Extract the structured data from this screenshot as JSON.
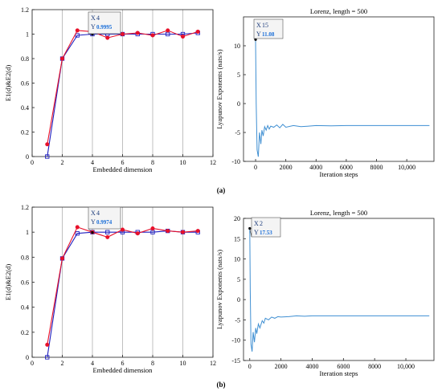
{
  "chart_data": [
    {
      "id": "a-left",
      "type": "line",
      "title": "",
      "xlabel": "Embedded dimension",
      "ylabel": "E1(d)&E2(d)",
      "xlim": [
        0,
        12
      ],
      "ylim": [
        0,
        1.2
      ],
      "xticks": [
        "0",
        "2",
        "4",
        "6",
        "8",
        "10",
        "12"
      ],
      "yticks": [
        "0",
        "0.2",
        "0.4",
        "0.6",
        "0.8",
        "1",
        "1.2"
      ],
      "grid": "x-only",
      "series": [
        {
          "name": "",
          "color": "#1f1fbf",
          "marker": "square",
          "x": [
            1,
            2,
            3,
            4,
            5,
            6,
            7,
            8,
            9,
            10,
            11
          ],
          "y": [
            0,
            0.8,
            0.99,
            1.0,
            1.0,
            1.0,
            1.0,
            1.0,
            1.0,
            1.0,
            1.01
          ]
        },
        {
          "name": "",
          "color": "#e8102a",
          "marker": "circle",
          "x": [
            1,
            2,
            3,
            4,
            5,
            6,
            7,
            8,
            9,
            10,
            11
          ],
          "y": [
            0.1,
            0.8,
            1.03,
            1.02,
            0.97,
            1.0,
            1.01,
            0.99,
            1.03,
            0.98,
            1.02
          ]
        }
      ],
      "datatip": {
        "xlabel": "X",
        "x": "4",
        "ylabel": "Y",
        "y": "0.9995"
      }
    },
    {
      "id": "a-right",
      "type": "line",
      "title": "Lorenz, length = 500",
      "xlabel": "Iteration steps",
      "ylabel": "Lyapunov Exponents (nats/s)",
      "xlim": [
        -800,
        11800
      ],
      "ylim": [
        -10,
        15
      ],
      "xticks": [
        "0",
        "2000",
        "4000",
        "6000",
        "8000",
        "10,000"
      ],
      "yticks": [
        "-10",
        "-5",
        "0",
        "5",
        "10"
      ],
      "grid": "none",
      "series": [
        {
          "name": "",
          "color": "#3f8fd2",
          "x": [
            0,
            40,
            100,
            180,
            260,
            350,
            420,
            500,
            600,
            700,
            800,
            900,
            1000,
            1200,
            1400,
            1600,
            1800,
            2000,
            2500,
            3000,
            3500,
            4000,
            5000,
            6000,
            7000,
            8000,
            9000,
            10000,
            11500
          ],
          "y": [
            11.08,
            0,
            -8,
            -9.2,
            -5,
            -7,
            -4.6,
            -5.6,
            -4,
            -4.6,
            -3.8,
            -4.4,
            -3.9,
            -4.1,
            -3.7,
            -4.2,
            -3.6,
            -4.1,
            -3.8,
            -4.0,
            -3.9,
            -3.8,
            -3.85,
            -3.8,
            -3.8,
            -3.8,
            -3.8,
            -3.8,
            -3.8
          ]
        }
      ],
      "datatip": {
        "xlabel": "X",
        "x": "15",
        "ylabel": "Y",
        "y": "11.08"
      }
    },
    {
      "id": "b-left",
      "type": "line",
      "title": "",
      "xlabel": "Embedded dimension",
      "ylabel": "E1(d)&E2(d)",
      "xlim": [
        0,
        12
      ],
      "ylim": [
        0,
        1.2
      ],
      "xticks": [
        "0",
        "2",
        "4",
        "6",
        "8",
        "10",
        "12"
      ],
      "yticks": [
        "0",
        "0.2",
        "0.4",
        "0.6",
        "0.8",
        "1",
        "1.2"
      ],
      "grid": "x-only",
      "series": [
        {
          "name": "",
          "color": "#1f1fbf",
          "marker": "square",
          "x": [
            1,
            2,
            3,
            4,
            5,
            6,
            7,
            8,
            9,
            10,
            11
          ],
          "y": [
            0,
            0.79,
            0.99,
            1.0,
            1.0,
            1.0,
            1.0,
            1.0,
            1.01,
            1.0,
            1.0
          ]
        },
        {
          "name": "",
          "color": "#e8102a",
          "marker": "circle",
          "x": [
            1,
            2,
            3,
            4,
            5,
            6,
            7,
            8,
            9,
            10,
            11
          ],
          "y": [
            0.1,
            0.79,
            1.04,
            1.0,
            0.96,
            1.02,
            0.99,
            1.03,
            1.01,
            1.0,
            1.01
          ]
        }
      ],
      "datatip": {
        "xlabel": "X",
        "x": "4",
        "ylabel": "Y",
        "y": "0.9974"
      }
    },
    {
      "id": "b-right",
      "type": "line",
      "title": "Lorenz, length = 500",
      "xlabel": "Iteration steps",
      "ylabel": "Lyapunov Exponents (nats/s)",
      "xlim": [
        -400,
        11800
      ],
      "ylim": [
        -15,
        20
      ],
      "xticks": [
        "0",
        "2000",
        "4000",
        "6000",
        "8000",
        "10,000"
      ],
      "yticks": [
        "-15",
        "-10",
        "-5",
        "0",
        "5",
        "10",
        "15",
        "20"
      ],
      "grid": "none",
      "series": [
        {
          "name": "",
          "color": "#3f8fd2",
          "x": [
            0,
            30,
            80,
            150,
            220,
            300,
            380,
            450,
            550,
            650,
            800,
            900,
            1000,
            1200,
            1400,
            1600,
            1800,
            2000,
            2500,
            3000,
            3500,
            4000,
            5000,
            6000,
            7000,
            8000,
            9000,
            10000,
            11500
          ],
          "y": [
            17.53,
            2,
            -11,
            -12.8,
            -8,
            -10.5,
            -7,
            -8.4,
            -6,
            -7,
            -5.2,
            -5.8,
            -4.6,
            -5,
            -4.3,
            -4.6,
            -4.2,
            -4.3,
            -4.2,
            -4.0,
            -4.1,
            -4.0,
            -4.0,
            -4.0,
            -4.0,
            -4.0,
            -4.0,
            -4.0,
            -4.0
          ]
        }
      ],
      "datatip": {
        "xlabel": "X",
        "x": "2",
        "ylabel": "Y",
        "y": "17.53"
      }
    }
  ],
  "subfigure_labels": [
    "(a)",
    "(b)"
  ]
}
